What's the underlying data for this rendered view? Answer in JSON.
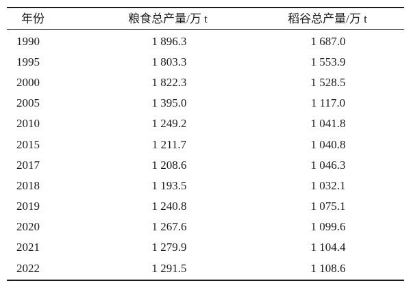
{
  "table": {
    "headers": {
      "year": "年份",
      "grain": "粮食总产量/万 t",
      "rice": "稻谷总产量/万 t"
    },
    "rows": [
      {
        "year": "1990",
        "grain": "1 896.3",
        "rice": "1 687.0"
      },
      {
        "year": "1995",
        "grain": "1 803.3",
        "rice": "1 553.9"
      },
      {
        "year": "2000",
        "grain": "1 822.3",
        "rice": "1 528.5"
      },
      {
        "year": "2005",
        "grain": "1 395.0",
        "rice": "1 117.0"
      },
      {
        "year": "2010",
        "grain": "1 249.2",
        "rice": "1 041.8"
      },
      {
        "year": "2015",
        "grain": "1 211.7",
        "rice": "1 040.8"
      },
      {
        "year": "2017",
        "grain": "1 208.6",
        "rice": "1 046.3"
      },
      {
        "year": "2018",
        "grain": "1 193.5",
        "rice": "1 032.1"
      },
      {
        "year": "2019",
        "grain": "1 240.8",
        "rice": "1 075.1"
      },
      {
        "year": "2020",
        "grain": "1 267.6",
        "rice": "1 099.6"
      },
      {
        "year": "2021",
        "grain": "1 279.9",
        "rice": "1 104.4"
      },
      {
        "year": "2022",
        "grain": "1 291.5",
        "rice": "1 108.6"
      }
    ]
  }
}
